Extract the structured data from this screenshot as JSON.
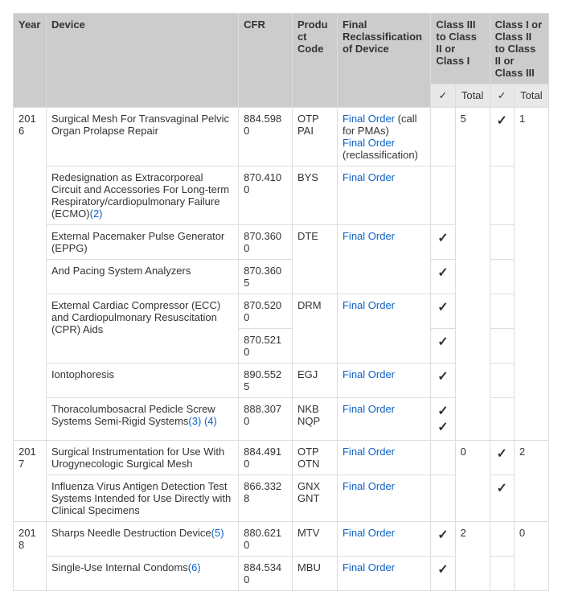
{
  "headers": {
    "year": "Year",
    "device": "Device",
    "cfr": "CFR",
    "pcode": "Product Code",
    "final": "Final Reclassification of Device",
    "group_down": "Class III to Class II or Class I",
    "group_up": "Class I or Class II to Class II or Class III",
    "check": "✓",
    "total": "Total"
  },
  "link_labels": {
    "final_order": "Final Order"
  },
  "strings": {
    "call_for_pmas": "(call for PMAs)",
    "reclassification": "(reclassification)"
  },
  "years": {
    "y2016": {
      "label": "2016",
      "down_total": "5",
      "up_total": "1"
    },
    "y2017": {
      "label": "2017",
      "down_total": "0",
      "up_total": "2"
    },
    "y2018": {
      "label": "2018",
      "down_total": "2",
      "up_total": "0"
    }
  },
  "rows": {
    "r2016_1": {
      "device": "Surgical Mesh For Transvaginal Pelvic Organ Prolapse Repair",
      "cfr": "884.5980",
      "pcode": "OTP PAI",
      "down_check": "",
      "up_check": "✓"
    },
    "r2016_2": {
      "device_pre": "Redesignation as Extracorporeal Circuit and Accessories For Long-term Respiratory/cardiopulmonary Failure (ECMO)",
      "fn1": "(2)",
      "cfr": "870.4100",
      "pcode": "BYS",
      "down_check": "",
      "up_check": ""
    },
    "r2016_3": {
      "device": "External Pacemaker Pulse Generator (EPPG)",
      "cfr": "870.3600",
      "pcode": "DTE",
      "down_check": "✓",
      "up_check": ""
    },
    "r2016_4": {
      "device": "And Pacing System Analyzers",
      "cfr": "870.3605",
      "down_check": "✓",
      "up_check": ""
    },
    "r2016_5": {
      "device": "External Cardiac Compressor (ECC) and Cardiopulmonary Resuscitation (CPR) Aids",
      "cfr": "870.5200",
      "pcode": "DRM",
      "down_check": "✓",
      "up_check": ""
    },
    "r2016_5b": {
      "cfr": "870.5210",
      "down_check": "✓",
      "up_check": ""
    },
    "r2016_6": {
      "device": "Iontophoresis",
      "cfr": "890.5525",
      "pcode": "EGJ",
      "down_check": "✓",
      "up_check": ""
    },
    "r2016_7": {
      "device_pre": "Thoracolumbosacral Pedicle Screw Systems Semi-Rigid Systems",
      "fn1": "(3)",
      "fn2": "(4)",
      "cfr": "888.3070",
      "pcode": "NKB NQP",
      "down_check1": "✓",
      "down_check2": "✓",
      "up_check": ""
    },
    "r2017_1": {
      "device": "Surgical Instrumentation for Use With Urogynecologic Surgical Mesh",
      "cfr": "884.4910",
      "pcode": "OTP OTN",
      "down_check": "",
      "up_check": "✓"
    },
    "r2017_2": {
      "device": "Influenza Virus Antigen Detection Test Systems Intended for Use Directly with Clinical Specimens",
      "cfr": "866.3328",
      "pcode": "GNX GNT",
      "down_check": "",
      "up_check": "✓"
    },
    "r2018_1": {
      "device_pre": "Sharps Needle Destruction Device",
      "fn1": "(5)",
      "cfr": "880.6210",
      "pcode": "MTV",
      "down_check": "✓",
      "up_check": ""
    },
    "r2018_2": {
      "device_pre": "Single-Use Internal Condoms",
      "fn1": "(6)",
      "cfr": "884.5340",
      "pcode": "MBU",
      "down_check": "✓",
      "up_check": ""
    }
  },
  "colors": {
    "header_bg": "#cccccc",
    "sub_bg": "#e8e8e8",
    "border": "#dddddd",
    "link": "#0b62c4",
    "text": "#333333"
  }
}
